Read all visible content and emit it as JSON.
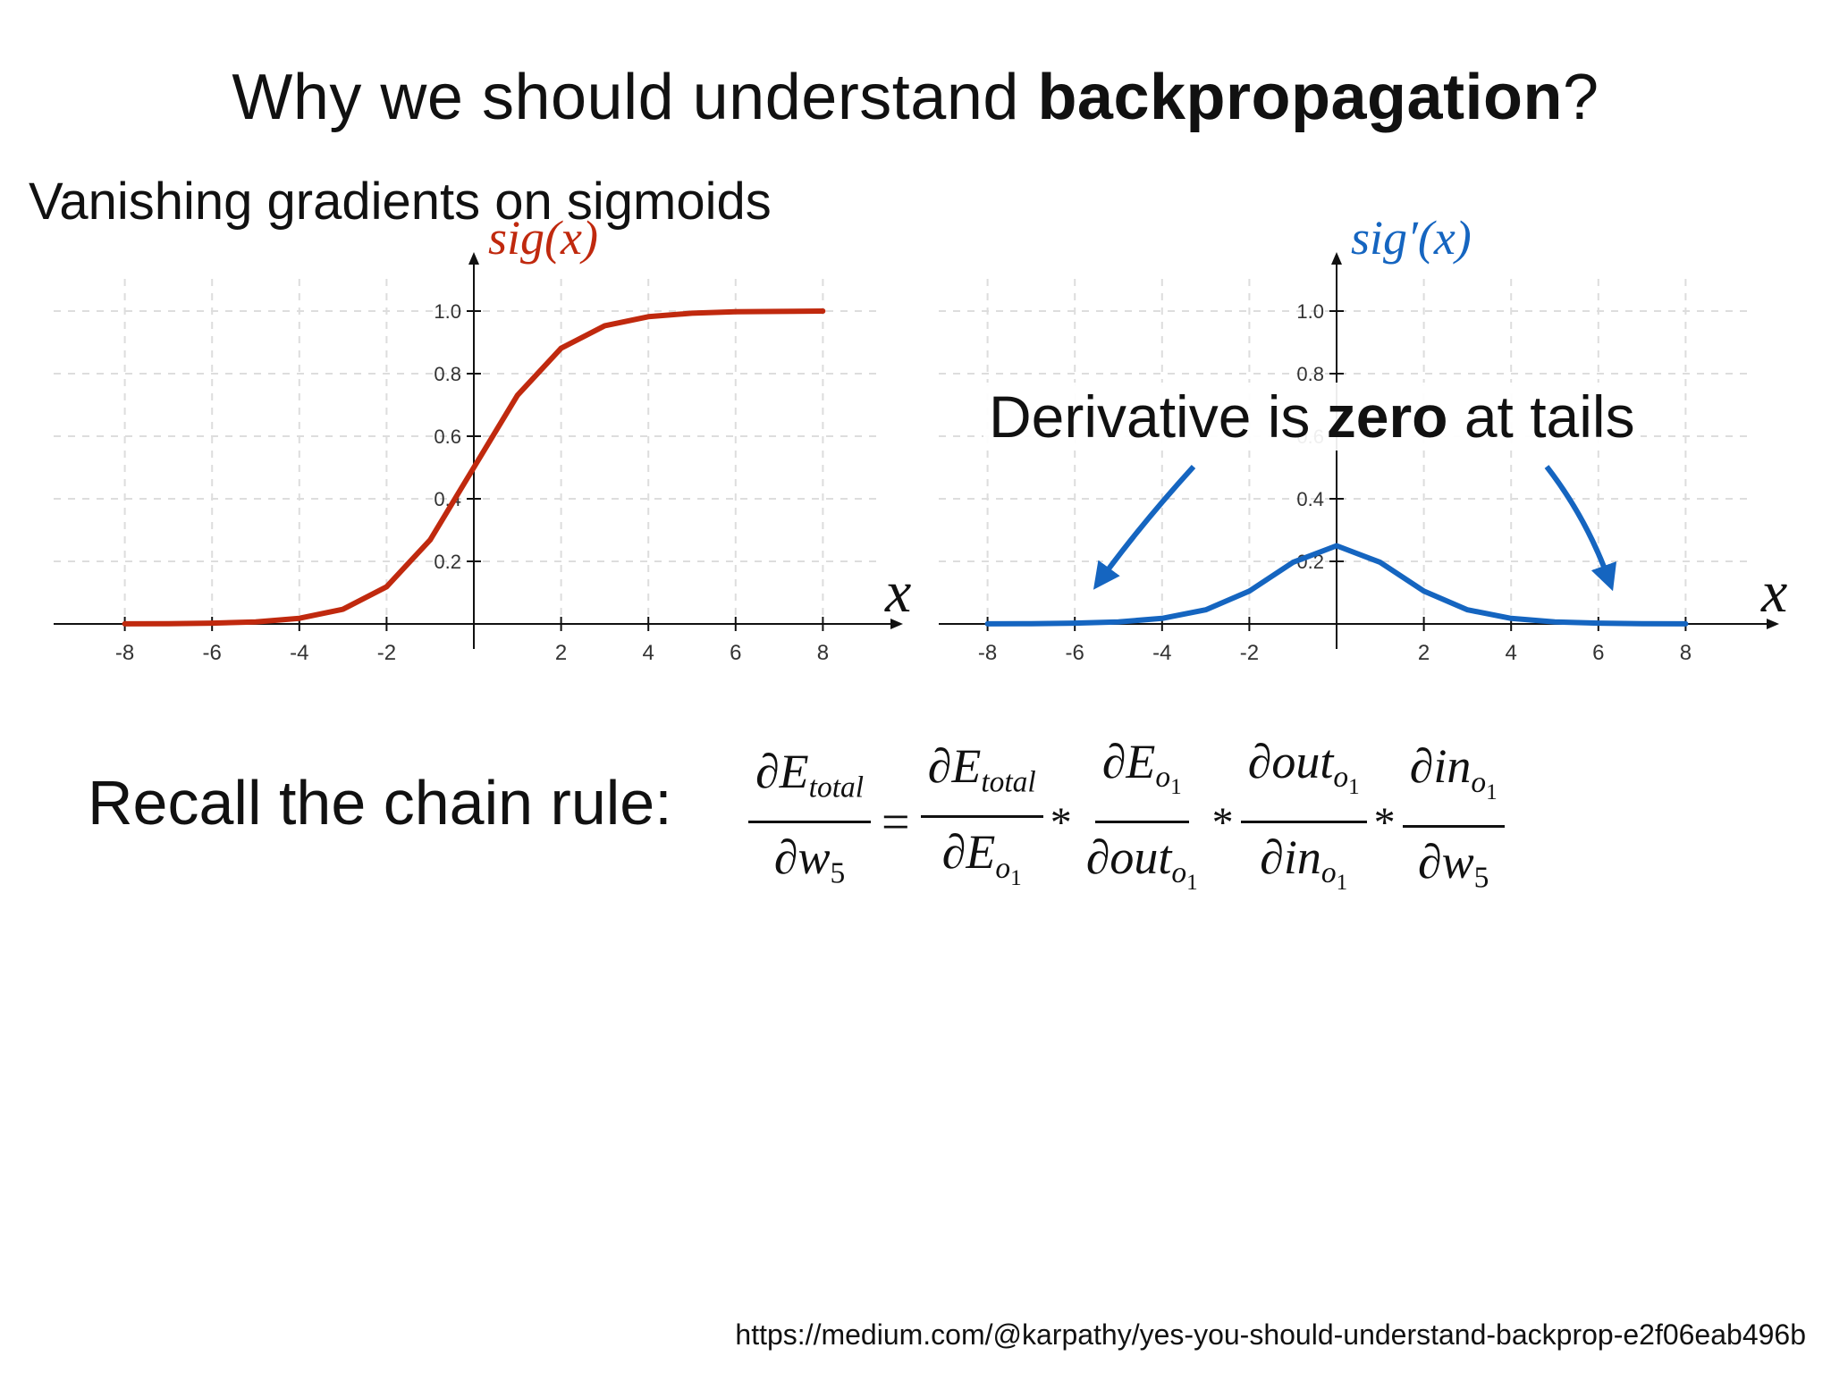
{
  "slide": {
    "title_prefix": "Why we should understand ",
    "title_bold": "backpropagation",
    "title_suffix": "?",
    "subtitle": "Vanishing gradients on sigmoids"
  },
  "annotation": {
    "prefix": "Derivative is ",
    "bold": "zero",
    "suffix": " at tails"
  },
  "chain_rule": {
    "label": "Recall the chain rule:",
    "lhs": {
      "num_sym": "∂E",
      "num_sub": "total",
      "den_sym": "∂w",
      "den_sub": "5"
    },
    "equals": "=",
    "times": "*",
    "terms": [
      {
        "num_sym": "∂E",
        "num_sub": "total",
        "num_subsub": "",
        "den_sym": "∂E",
        "den_sub": "o",
        "den_subsub": "1"
      },
      {
        "num_sym": "∂E",
        "num_sub": "o",
        "num_subsub": "1",
        "den_sym": "∂out",
        "den_sub": "o",
        "den_subsub": "1"
      },
      {
        "num_sym": "∂out",
        "num_sub": "o",
        "num_subsub": "1",
        "den_sym": "∂in",
        "den_sub": "o",
        "den_subsub": "1"
      },
      {
        "num_sym": "∂in",
        "num_sub": "o",
        "num_subsub": "1",
        "den_sym": "∂w",
        "den_sub": "5",
        "den_subsub": ""
      }
    ]
  },
  "source_url": "https://medium.com/@karpathy/yes-you-should-understand-backprop-e2f06eab496b",
  "colors": {
    "sigmoid": "#c0290e",
    "derivative": "#1565c0",
    "grid": "#dddddd",
    "axis": "#111111"
  },
  "chart_data": [
    {
      "type": "line",
      "title": "sig(x)",
      "xlabel": "x",
      "ylabel": "",
      "xlim": [
        -8,
        8
      ],
      "ylim": [
        0,
        1.0
      ],
      "x_ticks": [
        "-8",
        "-6",
        "-4",
        "-2",
        "2",
        "4",
        "6",
        "8"
      ],
      "y_ticks": [
        "0.2",
        "0.4",
        "0.6",
        "0.8",
        "1.0"
      ],
      "grid": true,
      "series": [
        {
          "x": [
            -8,
            -7,
            -6,
            -5,
            -4,
            -3,
            -2,
            -1,
            0,
            1,
            2,
            3,
            4,
            5,
            6,
            7,
            8
          ],
          "y": [
            0.0003,
            0.0009,
            0.0025,
            0.0067,
            0.018,
            0.047,
            0.119,
            0.269,
            0.5,
            0.731,
            0.881,
            0.953,
            0.982,
            0.993,
            0.998,
            0.999,
            1.0
          ]
        }
      ]
    },
    {
      "type": "line",
      "title": "sig′(x)",
      "xlabel": "x",
      "ylabel": "",
      "xlim": [
        -8,
        8
      ],
      "ylim": [
        0,
        1.0
      ],
      "x_ticks": [
        "-8",
        "-6",
        "-4",
        "-2",
        "2",
        "4",
        "6",
        "8"
      ],
      "y_ticks": [
        "0.2",
        "0.4",
        "0.6",
        "0.8",
        "1.0"
      ],
      "grid": true,
      "series": [
        {
          "x": [
            -8,
            -7,
            -6,
            -5,
            -4,
            -3,
            -2,
            -1,
            0,
            1,
            2,
            3,
            4,
            5,
            6,
            7,
            8
          ],
          "y": [
            0.0003,
            0.0009,
            0.0025,
            0.0066,
            0.0177,
            0.0452,
            0.105,
            0.197,
            0.25,
            0.197,
            0.105,
            0.0452,
            0.0177,
            0.0066,
            0.0025,
            0.0009,
            0.0003
          ]
        }
      ]
    }
  ]
}
